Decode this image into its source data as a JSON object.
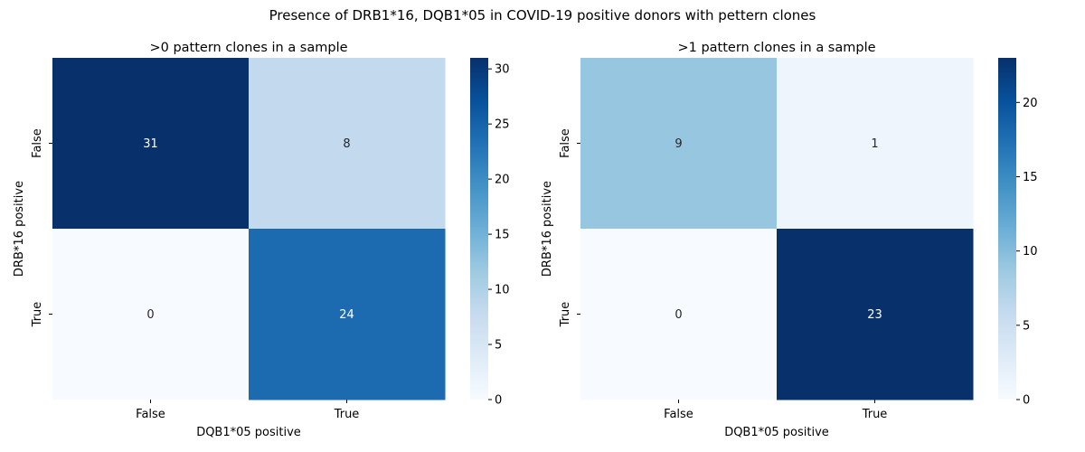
{
  "figure": {
    "suptitle": "Presence of DRB1*16, DQB1*05 in COVID-19 positive donors with pettern clones"
  },
  "chart_data": [
    {
      "type": "heatmap",
      "title": ">0 pattern clones in a sample",
      "xlabel": "DQB1*05 positive",
      "ylabel": "DRB*16 positive",
      "x_categories": [
        "False",
        "True"
      ],
      "y_categories": [
        "False",
        "True"
      ],
      "values": [
        [
          31,
          8
        ],
        [
          0,
          24
        ]
      ],
      "colormap": "Blues",
      "vmin": 0,
      "vmax": 31,
      "colorbar_ticks": [
        0,
        5,
        10,
        15,
        20,
        25,
        30
      ]
    },
    {
      "type": "heatmap",
      "title": ">1 pattern clones in a sample",
      "xlabel": "DQB1*05 positive",
      "ylabel": "DRB*16 positive",
      "x_categories": [
        "False",
        "True"
      ],
      "y_categories": [
        "False",
        "True"
      ],
      "values": [
        [
          9,
          1
        ],
        [
          0,
          23
        ]
      ],
      "colormap": "Blues",
      "vmin": 0,
      "vmax": 23,
      "colorbar_ticks": [
        0,
        5,
        10,
        15,
        20
      ]
    }
  ]
}
